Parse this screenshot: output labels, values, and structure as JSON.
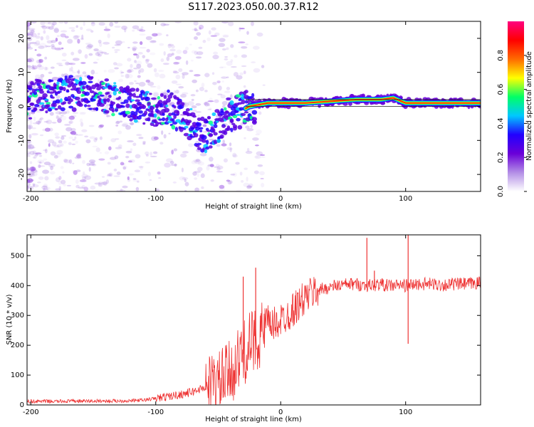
{
  "figure": {
    "title": "S117.2023.050.00.37.R12"
  },
  "chart_data": [
    {
      "type": "heatmap",
      "xlabel": "Height of straight line (km)",
      "ylabel": "Frequency (Hz)",
      "xlim": [
        -203,
        160
      ],
      "ylim": [
        -25,
        25
      ],
      "x_ticks": [
        -200,
        -100,
        0,
        100
      ],
      "y_ticks": [
        -20,
        -10,
        0,
        10,
        20
      ],
      "grid": false,
      "colorbar": {
        "label": "Normalized spectral amplitude",
        "range": [
          0,
          1
        ],
        "ticks": [
          "0.0",
          "0.2",
          "0.4",
          "0.6",
          "0.8"
        ],
        "colormap": [
          "#ffffff",
          "#b38ee6",
          "#6a00d8",
          "#2200ff",
          "#00c8ff",
          "#00ff66",
          "#ffff00",
          "#ff6a00",
          "#ff0000",
          "#ff0080"
        ]
      },
      "signal_track": [
        {
          "x": -200,
          "y": 3
        },
        {
          "x": -180,
          "y": 3.5
        },
        {
          "x": -160,
          "y": 4
        },
        {
          "x": -140,
          "y": 3
        },
        {
          "x": -120,
          "y": 1
        },
        {
          "x": -100,
          "y": -1
        },
        {
          "x": -90,
          "y": -0.5
        },
        {
          "x": -80,
          "y": -3
        },
        {
          "x": -70,
          "y": -6
        },
        {
          "x": -60,
          "y": -9
        },
        {
          "x": -50,
          "y": -6
        },
        {
          "x": -40,
          "y": -2
        },
        {
          "x": -30,
          "y": -1
        },
        {
          "x": -25,
          "y": 0
        },
        {
          "x": -10,
          "y": 1
        },
        {
          "x": 0,
          "y": 1
        },
        {
          "x": 20,
          "y": 1
        },
        {
          "x": 40,
          "y": 1.5
        },
        {
          "x": 60,
          "y": 2
        },
        {
          "x": 80,
          "y": 2
        },
        {
          "x": 90,
          "y": 2.5
        },
        {
          "x": 100,
          "y": 1
        },
        {
          "x": 120,
          "y": 1
        },
        {
          "x": 140,
          "y": 1
        },
        {
          "x": 160,
          "y": 1
        }
      ]
    },
    {
      "type": "line",
      "xlabel": "Height of straight line (km)",
      "ylabel": "SNR (10 * v/v)",
      "xlim": [
        -203,
        160
      ],
      "ylim": [
        0,
        570
      ],
      "x_ticks": [
        -200,
        -100,
        0,
        100
      ],
      "y_ticks": [
        0,
        100,
        200,
        300,
        400,
        500
      ],
      "grid": false,
      "series": [
        {
          "color": "#ee3333",
          "x": [
            -203,
            -180,
            -160,
            -140,
            -120,
            -110,
            -100,
            -90,
            -80,
            -70,
            -60,
            -50,
            -45,
            -40,
            -35,
            -30,
            -25,
            -20,
            -15,
            -10,
            -5,
            0,
            5,
            10,
            15,
            20,
            25,
            30,
            35,
            40,
            45,
            50,
            55,
            60,
            65,
            70,
            75,
            80,
            85,
            90,
            95,
            100,
            105,
            110,
            120,
            130,
            140,
            150,
            160
          ],
          "y": [
            12,
            12,
            13,
            13,
            14,
            16,
            22,
            28,
            35,
            45,
            60,
            70,
            90,
            110,
            140,
            170,
            200,
            220,
            240,
            260,
            270,
            285,
            300,
            320,
            340,
            360,
            375,
            385,
            390,
            395,
            400,
            402,
            405,
            405,
            402,
            400,
            402,
            405,
            400,
            400,
            402,
            400,
            402,
            405,
            405,
            402,
            405,
            405,
            410
          ]
        }
      ],
      "spikes": [
        {
          "x": -30,
          "y": 430
        },
        {
          "x": -20,
          "y": 460
        },
        {
          "x": 69,
          "y": 560
        },
        {
          "x": 75,
          "y": 450
        },
        {
          "x": 102,
          "y": 570
        },
        {
          "x": 102,
          "y": 205
        }
      ]
    }
  ]
}
